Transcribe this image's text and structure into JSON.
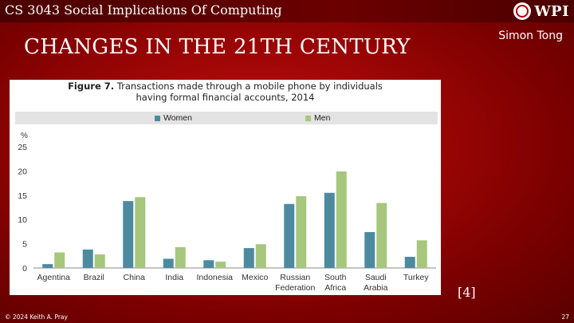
{
  "header": {
    "course": "CS 3043 Social Implications Of Computing",
    "logo_text": "WPI"
  },
  "slide": {
    "title": "CHANGES IN THE 21TH CENTURY",
    "author": "Simon Tong",
    "citation": "[4]",
    "footer_left": "© 2024 Keith A. Pray",
    "page_number": "27"
  },
  "figure": {
    "title_bold": "Figure 7.",
    "title_rest": "Transactions made through a mobile phone by individuals",
    "title_line2": "having formal financial accounts, 2014"
  },
  "chart_data": {
    "type": "bar",
    "y_unit_label": "%",
    "ylim": [
      0,
      25
    ],
    "yticks": [
      0,
      5,
      10,
      15,
      20,
      25
    ],
    "grid": false,
    "legend_position": "top",
    "categories": [
      [
        "Agentina"
      ],
      [
        "Brazil"
      ],
      [
        "China"
      ],
      [
        "India"
      ],
      [
        "Indonesia"
      ],
      [
        "Mexico"
      ],
      [
        "Russian",
        "Federation"
      ],
      [
        "South",
        "Africa"
      ],
      [
        "Saudi",
        "Arabia"
      ],
      [
        "Turkey"
      ]
    ],
    "series": [
      {
        "name": "Women",
        "color": "#4d8aa0",
        "values": [
          0.8,
          3.8,
          13.8,
          1.9,
          1.6,
          4.1,
          13.2,
          15.5,
          7.4,
          2.3
        ]
      },
      {
        "name": "Men",
        "color": "#a6c77c",
        "values": [
          3.2,
          2.8,
          14.6,
          4.3,
          1.3,
          4.9,
          14.8,
          19.9,
          13.4,
          5.7
        ]
      }
    ]
  }
}
